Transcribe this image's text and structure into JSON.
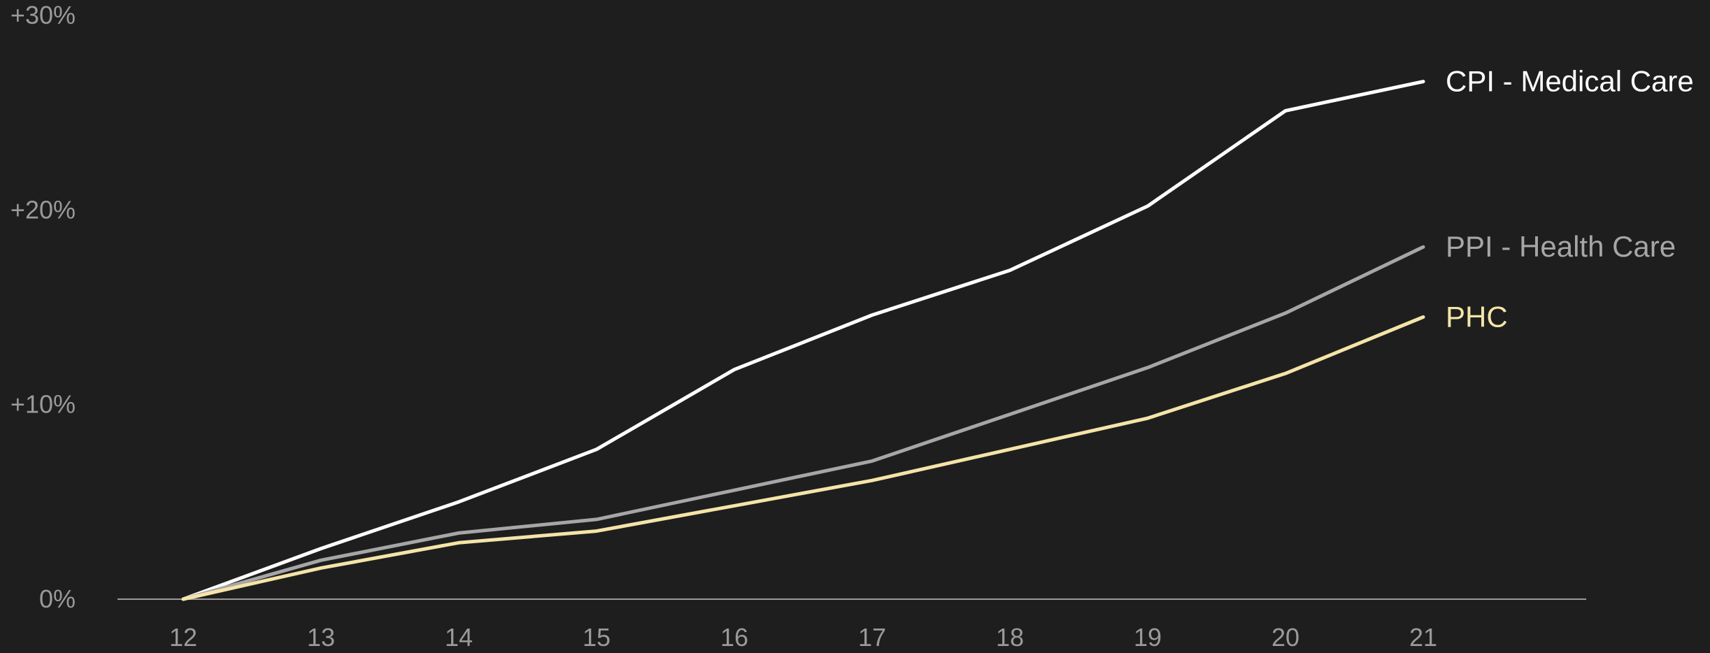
{
  "chart_data": {
    "type": "line",
    "title": "",
    "xlabel": "",
    "ylabel": "",
    "categories": [
      "12",
      "13",
      "14",
      "15",
      "16",
      "17",
      "18",
      "19",
      "20",
      "21"
    ],
    "ylim": [
      0,
      30
    ],
    "yticks": [
      0,
      10,
      20,
      30
    ],
    "ytick_labels": [
      "0%",
      "+10%",
      "+20%",
      "+30%"
    ],
    "grid": false,
    "legend": "end-of-line labels",
    "series": [
      {
        "name": "CPI - Medical Care",
        "color": "#ffffff",
        "values": [
          0,
          2.6,
          5.0,
          7.7,
          11.8,
          14.6,
          16.9,
          20.2,
          25.1,
          26.6
        ]
      },
      {
        "name": "PPI - Health Care",
        "color": "#a6a6a6",
        "values": [
          0,
          2.0,
          3.4,
          4.1,
          5.6,
          7.1,
          9.5,
          11.9,
          14.7,
          18.1
        ]
      },
      {
        "name": "PHC",
        "color": "#f5e4a8",
        "values": [
          0,
          1.6,
          2.9,
          3.5,
          4.8,
          6.1,
          7.7,
          9.3,
          11.6,
          14.5
        ]
      }
    ]
  }
}
